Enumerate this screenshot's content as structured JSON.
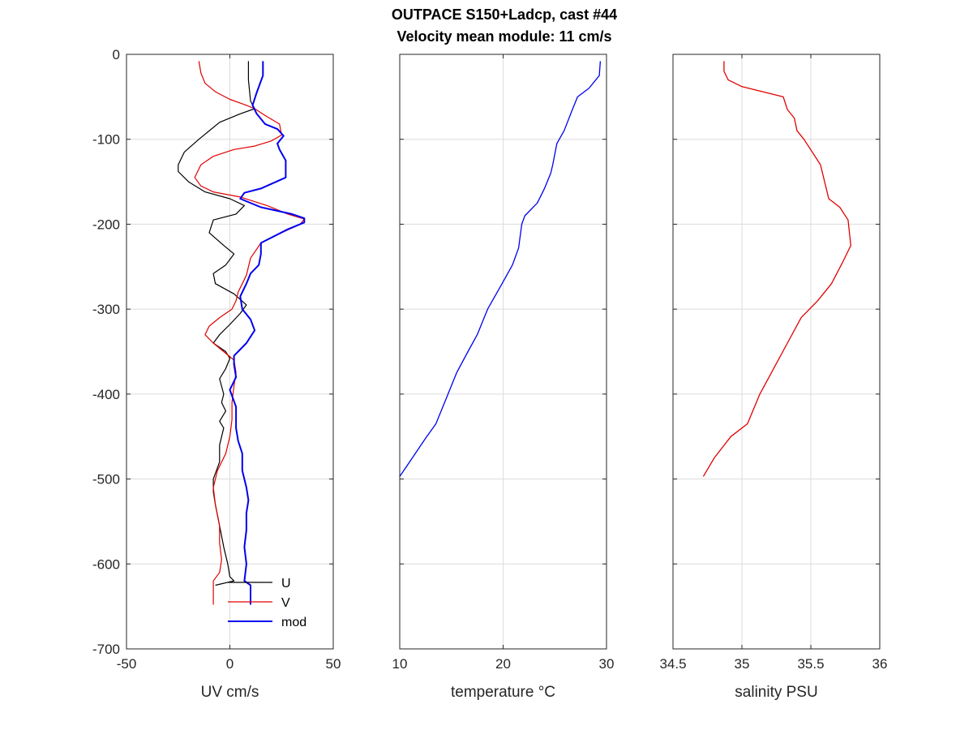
{
  "chart_data": {
    "title": [
      "OUTPACE S150+Ladcp, cast #44",
      "Velocity mean module:  11 cm/s"
    ],
    "panels": [
      {
        "type": "line",
        "xlabel": "UV cm/s",
        "xlim": [
          -50,
          50
        ],
        "xticks": [
          -50,
          0,
          50
        ],
        "ylim": [
          -700,
          0
        ],
        "yticks": [
          0,
          -100,
          -200,
          -300,
          -400,
          -500,
          -600,
          -700
        ],
        "show_yticklabels": true,
        "grid": true,
        "legend": {
          "position": "bottom-right",
          "entries": [
            "U",
            "V",
            "mod"
          ]
        },
        "series": [
          {
            "name": "U",
            "color": "#000000",
            "points": [
              [
                9,
                -8
              ],
              [
                9,
                -30
              ],
              [
                10,
                -55
              ],
              [
                12,
                -64
              ],
              [
                5,
                -70
              ],
              [
                -5,
                -80
              ],
              [
                -15,
                -100
              ],
              [
                -22,
                -115
              ],
              [
                -25,
                -130
              ],
              [
                -25,
                -138
              ],
              [
                -20,
                -150
              ],
              [
                -12,
                -162
              ],
              [
                0,
                -170
              ],
              [
                7,
                -178
              ],
              [
                3,
                -188
              ],
              [
                -8,
                -195
              ],
              [
                -10,
                -210
              ],
              [
                -3,
                -225
              ],
              [
                2,
                -235
              ],
              [
                -2,
                -248
              ],
              [
                -8,
                -258
              ],
              [
                -7,
                -270
              ],
              [
                2,
                -282
              ],
              [
                8,
                -295
              ],
              [
                5,
                -305
              ],
              [
                0,
                -318
              ],
              [
                -5,
                -330
              ],
              [
                -8,
                -340
              ],
              [
                -2,
                -350
              ],
              [
                0,
                -358
              ],
              [
                -2,
                -370
              ],
              [
                -5,
                -382
              ],
              [
                -3,
                -400
              ],
              [
                -4,
                -410
              ],
              [
                -2,
                -420
              ],
              [
                -5,
                -432
              ],
              [
                -3,
                -440
              ],
              [
                -5,
                -460
              ],
              [
                -5,
                -480
              ],
              [
                -8,
                -500
              ],
              [
                -8,
                -515
              ],
              [
                -7,
                -530
              ],
              [
                -5,
                -555
              ],
              [
                -3,
                -580
              ],
              [
                -1,
                -600
              ],
              [
                0,
                -615
              ],
              [
                2,
                -620
              ],
              [
                -7,
                -625
              ]
            ]
          },
          {
            "name": "V",
            "color": "#e00000",
            "points": [
              [
                -15,
                -8
              ],
              [
                -14,
                -22
              ],
              [
                -12,
                -34
              ],
              [
                -7,
                -44
              ],
              [
                0,
                -53
              ],
              [
                8,
                -60
              ],
              [
                12,
                -64
              ],
              [
                17,
                -72
              ],
              [
                24,
                -82
              ],
              [
                25,
                -95
              ],
              [
                20,
                -102
              ],
              [
                12,
                -108
              ],
              [
                2,
                -112
              ],
              [
                -8,
                -120
              ],
              [
                -14,
                -130
              ],
              [
                -17,
                -145
              ],
              [
                -14,
                -155
              ],
              [
                -8,
                -162
              ],
              [
                5,
                -168
              ],
              [
                18,
                -178
              ],
              [
                28,
                -188
              ],
              [
                36,
                -194
              ],
              [
                34,
                -200
              ],
              [
                25,
                -210
              ],
              [
                15,
                -222
              ],
              [
                10,
                -240
              ],
              [
                8,
                -260
              ],
              [
                4,
                -280
              ],
              [
                3,
                -290
              ],
              [
                1,
                -300
              ],
              [
                -5,
                -310
              ],
              [
                -10,
                -320
              ],
              [
                -12,
                -330
              ],
              [
                -8,
                -340
              ],
              [
                -3,
                -350
              ],
              [
                2,
                -360
              ],
              [
                3,
                -375
              ],
              [
                2,
                -390
              ],
              [
                1,
                -410
              ],
              [
                1,
                -430
              ],
              [
                0,
                -450
              ],
              [
                -2,
                -470
              ],
              [
                -6,
                -490
              ],
              [
                -8,
                -510
              ],
              [
                -7,
                -530
              ],
              [
                -5,
                -555
              ],
              [
                -5,
                -575
              ],
              [
                -4,
                -595
              ],
              [
                -5,
                -610
              ],
              [
                -8,
                -620
              ],
              [
                -8,
                -648
              ]
            ]
          },
          {
            "name": "mod",
            "color": "#0000ee",
            "points": [
              [
                16,
                -8
              ],
              [
                16,
                -25
              ],
              [
                13,
                -45
              ],
              [
                11,
                -60
              ],
              [
                13,
                -70
              ],
              [
                17,
                -82
              ],
              [
                23,
                -88
              ],
              [
                26,
                -96
              ],
              [
                23,
                -105
              ],
              [
                24,
                -112
              ],
              [
                27,
                -125
              ],
              [
                27,
                -145
              ],
              [
                15,
                -158
              ],
              [
                7,
                -163
              ],
              [
                5,
                -170
              ],
              [
                15,
                -180
              ],
              [
                30,
                -188
              ],
              [
                36,
                -193
              ],
              [
                36,
                -198
              ],
              [
                28,
                -206
              ],
              [
                15,
                -222
              ],
              [
                15,
                -235
              ],
              [
                14,
                -248
              ],
              [
                10,
                -258
              ],
              [
                8,
                -270
              ],
              [
                5,
                -285
              ],
              [
                6,
                -300
              ],
              [
                10,
                -312
              ],
              [
                12,
                -325
              ],
              [
                8,
                -340
              ],
              [
                2,
                -355
              ],
              [
                2,
                -365
              ],
              [
                3,
                -380
              ],
              [
                0,
                -395
              ],
              [
                3,
                -415
              ],
              [
                3,
                -440
              ],
              [
                4,
                -455
              ],
              [
                6,
                -470
              ],
              [
                6,
                -490
              ],
              [
                8,
                -510
              ],
              [
                9,
                -525
              ],
              [
                8,
                -540
              ],
              [
                8,
                -560
              ],
              [
                7,
                -580
              ],
              [
                8,
                -600
              ],
              [
                7,
                -620
              ],
              [
                10,
                -625
              ],
              [
                10,
                -648
              ]
            ]
          }
        ]
      },
      {
        "type": "line",
        "xlabel": "temperature °C",
        "xlim": [
          10,
          30
        ],
        "xticks": [
          10,
          20,
          30
        ],
        "ylim": [
          -700,
          0
        ],
        "show_yticklabels": false,
        "grid": true,
        "series": [
          {
            "name": "",
            "color": "#0000ee",
            "points": [
              [
                29.4,
                -8
              ],
              [
                29.3,
                -25
              ],
              [
                28.3,
                -40
              ],
              [
                27.2,
                -50
              ],
              [
                26.7,
                -65
              ],
              [
                25.9,
                -90
              ],
              [
                25.2,
                -105
              ],
              [
                24.8,
                -130
              ],
              [
                24.6,
                -140
              ],
              [
                24.0,
                -158
              ],
              [
                23.3,
                -175
              ],
              [
                22.1,
                -190
              ],
              [
                21.8,
                -200
              ],
              [
                21.5,
                -228
              ],
              [
                20.9,
                -248
              ],
              [
                19.9,
                -270
              ],
              [
                18.5,
                -300
              ],
              [
                17.5,
                -330
              ],
              [
                16.6,
                -350
              ],
              [
                15.5,
                -375
              ],
              [
                14.5,
                -405
              ],
              [
                13.5,
                -435
              ],
              [
                12.5,
                -452
              ],
              [
                11.5,
                -470
              ],
              [
                10.5,
                -488
              ],
              [
                10.0,
                -497
              ]
            ]
          }
        ]
      },
      {
        "type": "line",
        "xlabel": "salinity PSU",
        "xlim": [
          34.5,
          36
        ],
        "xticks": [
          34.5,
          35,
          35.5,
          36
        ],
        "ylim": [
          -700,
          0
        ],
        "show_yticklabels": false,
        "grid": true,
        "series": [
          {
            "name": "",
            "color": "#e00000",
            "points": [
              [
                34.87,
                -8
              ],
              [
                34.87,
                -20
              ],
              [
                34.9,
                -30
              ],
              [
                35.0,
                -38
              ],
              [
                35.3,
                -50
              ],
              [
                35.33,
                -65
              ],
              [
                35.38,
                -75
              ],
              [
                35.4,
                -90
              ],
              [
                35.45,
                -100
              ],
              [
                35.57,
                -130
              ],
              [
                35.6,
                -150
              ],
              [
                35.63,
                -170
              ],
              [
                35.71,
                -180
              ],
              [
                35.77,
                -195
              ],
              [
                35.79,
                -225
              ],
              [
                35.73,
                -245
              ],
              [
                35.65,
                -270
              ],
              [
                35.55,
                -290
              ],
              [
                35.43,
                -310
              ],
              [
                35.33,
                -340
              ],
              [
                35.23,
                -370
              ],
              [
                35.13,
                -400
              ],
              [
                35.04,
                -435
              ],
              [
                34.92,
                -450
              ],
              [
                34.8,
                -475
              ],
              [
                34.72,
                -497
              ]
            ]
          }
        ]
      }
    ]
  }
}
